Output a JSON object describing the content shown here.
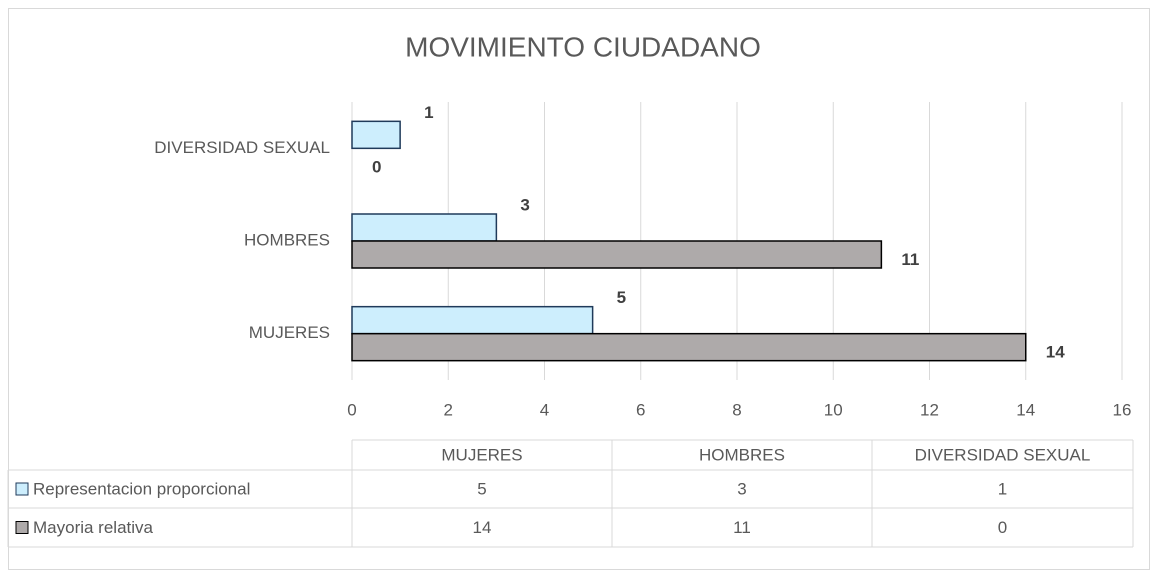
{
  "chart_data": {
    "type": "barh",
    "title": "MOVIMIENTO CIUDADANO",
    "categories": [
      "MUJERES",
      "HOMBRES",
      "DIVERSIDAD SEXUAL"
    ],
    "series": [
      {
        "name": "Representacion proporcional",
        "color": "#cdeefd",
        "values": [
          5,
          3,
          1
        ]
      },
      {
        "name": "Mayoria relativa",
        "color": "#aeaaaa",
        "values": [
          14,
          11,
          0
        ]
      }
    ],
    "xlim": [
      0,
      16
    ],
    "xticks": [
      0,
      2,
      4,
      6,
      8,
      10,
      12,
      14,
      16
    ],
    "grid": true,
    "data_table": true
  }
}
